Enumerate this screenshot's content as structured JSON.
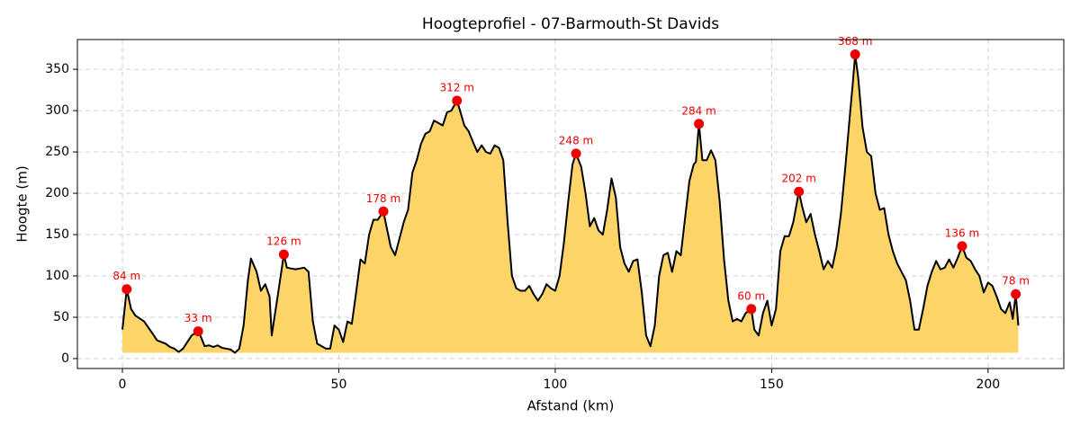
{
  "chart_data": {
    "type": "area",
    "title": "Hoogteprofiel - 07-Barmouth-St Davids",
    "xlabel": "Afstand (km)",
    "ylabel": "Hoogte (m)",
    "x": [
      0,
      1,
      2,
      3,
      5,
      7,
      8,
      10,
      11,
      12,
      13,
      14,
      15,
      16,
      17.5,
      18,
      19,
      20,
      21,
      22,
      23,
      24,
      25,
      26,
      27,
      28,
      29,
      29.7,
      31,
      32,
      33,
      34,
      34.5,
      36,
      37.3,
      38,
      40,
      42,
      43,
      44,
      45,
      47,
      48,
      49,
      50,
      51,
      52,
      53,
      54,
      55,
      56,
      57,
      58,
      59,
      60.3,
      61,
      62,
      63,
      64,
      65,
      66,
      67,
      68,
      69,
      70,
      71,
      72,
      73,
      74,
      75,
      76,
      77.3,
      78,
      79,
      80,
      81,
      82,
      83,
      84,
      85,
      86,
      87,
      88,
      89,
      90,
      91,
      92,
      93,
      94,
      95,
      96,
      97,
      98,
      99,
      100,
      101,
      102,
      103,
      104,
      104.8,
      106,
      107,
      108,
      109,
      110,
      111,
      112,
      113,
      114,
      115,
      116,
      117,
      118,
      119,
      120,
      121,
      122,
      123,
      124,
      125,
      126,
      127,
      128,
      129,
      130,
      131,
      132,
      132.5,
      133.2,
      134,
      135,
      136,
      137,
      138,
      139,
      140,
      141,
      142,
      143,
      144,
      145.3,
      146,
      147,
      148,
      149,
      150,
      151,
      152,
      153,
      154,
      155,
      156.3,
      157,
      158,
      159,
      160,
      161,
      162,
      163,
      164,
      165,
      166,
      167,
      168,
      168.7,
      169.3,
      170,
      171,
      172,
      173,
      174,
      175,
      176,
      177,
      178,
      179,
      180,
      181,
      182,
      183,
      184,
      185,
      186,
      187,
      188,
      189,
      190,
      191,
      192,
      193,
      194,
      195,
      196,
      197,
      198,
      199,
      200,
      201,
      202,
      203,
      204,
      205,
      205.7,
      206.4,
      207
    ],
    "values": [
      35,
      84,
      60,
      52,
      45,
      30,
      22,
      18,
      14,
      12,
      8,
      12,
      20,
      28,
      33,
      28,
      15,
      16,
      14,
      16,
      13,
      12,
      11,
      7,
      12,
      40,
      95,
      121,
      105,
      82,
      90,
      75,
      28,
      80,
      126,
      110,
      108,
      110,
      105,
      45,
      18,
      12,
      12,
      40,
      35,
      20,
      45,
      42,
      80,
      120,
      115,
      150,
      168,
      168,
      178,
      160,
      135,
      125,
      145,
      165,
      180,
      225,
      240,
      260,
      272,
      275,
      288,
      285,
      282,
      298,
      300,
      312,
      300,
      282,
      275,
      262,
      250,
      258,
      250,
      248,
      258,
      255,
      240,
      165,
      100,
      85,
      82,
      82,
      88,
      78,
      70,
      78,
      90,
      85,
      82,
      100,
      140,
      190,
      235,
      248,
      232,
      200,
      160,
      170,
      155,
      150,
      180,
      218,
      195,
      135,
      115,
      105,
      118,
      120,
      80,
      28,
      15,
      40,
      100,
      125,
      128,
      105,
      130,
      125,
      170,
      215,
      235,
      238,
      284,
      240,
      240,
      252,
      240,
      190,
      120,
      70,
      45,
      48,
      45,
      55,
      60,
      35,
      28,
      55,
      70,
      40,
      60,
      130,
      148,
      148,
      165,
      202,
      185,
      165,
      175,
      150,
      130,
      108,
      118,
      110,
      135,
      175,
      230,
      290,
      330,
      368,
      340,
      280,
      250,
      245,
      200,
      180,
      182,
      150,
      130,
      115,
      105,
      95,
      70,
      35,
      35,
      60,
      88,
      105,
      118,
      108,
      110,
      120,
      110,
      122,
      136,
      122,
      118,
      108,
      100,
      80,
      92,
      88,
      75,
      60,
      55,
      68,
      48,
      78,
      40
    ],
    "line_color": "#000000",
    "fill_color": "#fcd468",
    "peaks": {
      "color": "#ee0000",
      "x": [
        1,
        17.5,
        37.3,
        60.3,
        77.3,
        104.8,
        133.2,
        145.3,
        156.3,
        169.3,
        194,
        206.4
      ],
      "values": [
        84,
        33,
        126,
        178,
        312,
        248,
        284,
        60,
        202,
        368,
        136,
        78
      ],
      "value_labels": [
        "84 m",
        "33 m",
        "126 m",
        "178 m",
        "312 m",
        "248 m",
        "284 m",
        "60 m",
        "202 m",
        "368 m",
        "136 m",
        "78 m"
      ]
    },
    "xlim": [
      -10.4,
      217.5
    ],
    "ylim": [
      -12,
      386
    ],
    "xticks": [
      0,
      50,
      100,
      150,
      200
    ],
    "yticks": [
      0,
      50,
      100,
      150,
      200,
      250,
      300,
      350
    ],
    "grid": true
  }
}
